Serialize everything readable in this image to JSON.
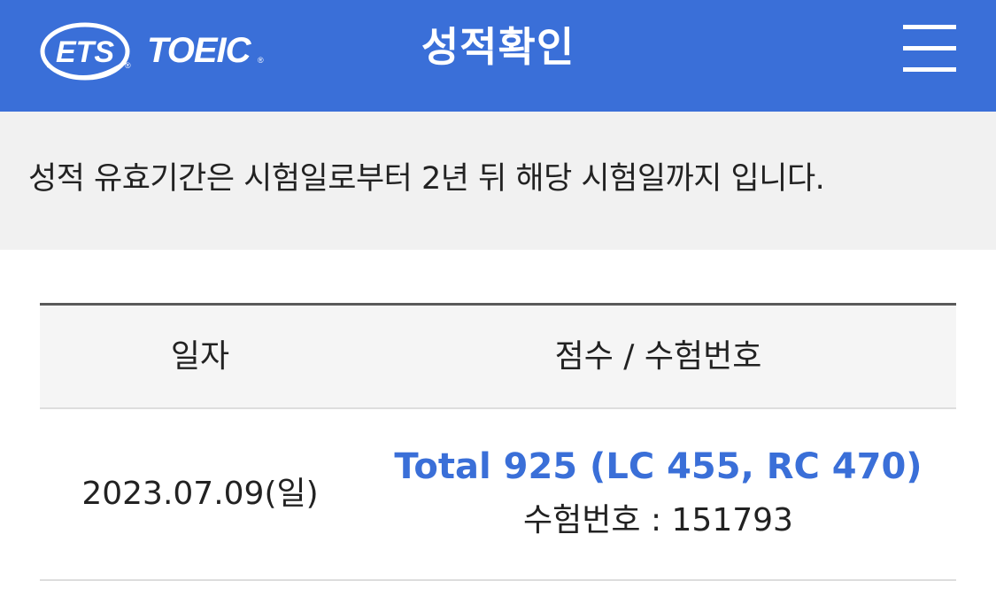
{
  "header": {
    "logo_ets": "ETS",
    "logo_toeic": "TOEIC",
    "title": "성적확인",
    "menu_icon": "hamburger-menu-icon",
    "background_color": "#3a6fd8"
  },
  "notice": {
    "text": "성적 유효기간은 시험일로부터 2년 뒤 해당 시험일까지 입니다."
  },
  "table": {
    "columns": [
      "일자",
      "점수 / 수험번호"
    ],
    "rows": [
      {
        "date": "2023.07.09(일)",
        "score": "Total 925 (LC 455, RC 470)",
        "exam_number": "수험번호 : 151793"
      }
    ],
    "accent_color": "#3a6fd8"
  }
}
